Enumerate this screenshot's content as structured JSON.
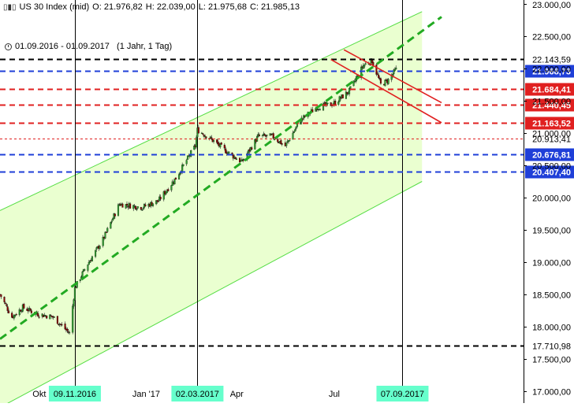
{
  "header": {
    "instrument": "US 30 Index (mid)",
    "open": "O: 21.976,82",
    "high": "H: 22.039,00",
    "low": "L: 21.975,68",
    "close": "C: 21.985,13",
    "icon": "candlestick-icon"
  },
  "period": {
    "text": "01.09.2016 - 01.09.2017   (1 Jahr, 1 Tag)",
    "icon": "clock-icon"
  },
  "colors": {
    "channel_fill": "#eaffd0",
    "channel_line": "#55dd44",
    "trend_dash": "#22aa22",
    "blue": "#1f3fd8",
    "red": "#e02020",
    "black": "#000000",
    "date_tag": "#66ffcc",
    "candle_up": "#2e9e2e",
    "candle_down": "#8b0000"
  },
  "chart_data": {
    "type": "candlestick",
    "title": "US 30 Index (mid)",
    "y_axis": {
      "min": 17000,
      "max": 23000,
      "ticks": [
        {
          "value": 23000,
          "label": "23.000,00"
        },
        {
          "value": 22500,
          "label": "22.500,00"
        },
        {
          "value": 22000,
          "label": "22.000,00"
        },
        {
          "value": 21500,
          "label": "21.500,00"
        },
        {
          "value": 21000,
          "label": "21.000,00"
        },
        {
          "value": 20500,
          "label": "20.500,00"
        },
        {
          "value": 20000,
          "label": "20.000,00"
        },
        {
          "value": 19500,
          "label": "19.500,00"
        },
        {
          "value": 19000,
          "label": "19.000,00"
        },
        {
          "value": 18500,
          "label": "18.500,00"
        },
        {
          "value": 18000,
          "label": "18.000,00"
        },
        {
          "value": 17500,
          "label": "17.500,00"
        },
        {
          "value": 17000,
          "label": "17.000,00"
        }
      ]
    },
    "x_axis": {
      "start": "2016-09-01",
      "end": "2017-10-13",
      "labels": [
        {
          "date": "2016-10-01",
          "label": "Okt",
          "highlight": false
        },
        {
          "date": "2016-11-09",
          "label": "09.11.2016",
          "highlight": true
        },
        {
          "date": "2017-01-01",
          "label": "Jan '17",
          "highlight": false
        },
        {
          "date": "2017-03-02",
          "label": "02.03.2017",
          "highlight": true
        },
        {
          "date": "2017-04-01",
          "label": "Apr",
          "highlight": false
        },
        {
          "date": "2017-07-01",
          "label": "Jul",
          "highlight": false
        },
        {
          "date": "2017-09-07",
          "label": "07.09.2017",
          "highlight": true
        }
      ]
    },
    "vertical_lines": [
      "2016-11-09",
      "2017-03-02",
      "2017-09-07"
    ],
    "horizontal_levels": [
      {
        "value": 22143.59,
        "label": "22.143,59",
        "color": "black",
        "style": "dash",
        "tag": false
      },
      {
        "value": 21968.73,
        "label": "21.968,73",
        "color": "blue",
        "style": "dash",
        "tag": true
      },
      {
        "value": 21684.41,
        "label": "21.684,41",
        "color": "red",
        "style": "dash",
        "tag": true
      },
      {
        "value": 21440.45,
        "label": "21.440,45",
        "color": "red",
        "style": "dash",
        "tag": true
      },
      {
        "value": 21163.52,
        "label": "21.163,52",
        "color": "red",
        "style": "dash",
        "tag": true
      },
      {
        "value": 20913.41,
        "label": "20.913,41",
        "color": "red",
        "style": "thin-dash",
        "tag": false
      },
      {
        "value": 20676.81,
        "label": "20.676,81",
        "color": "blue",
        "style": "dash",
        "tag": true
      },
      {
        "value": 20407.4,
        "label": "20.407,40",
        "color": "blue",
        "style": "dash",
        "tag": true
      },
      {
        "value": 17710.98,
        "label": "17.710,98",
        "color": "black",
        "style": "dash",
        "tag": false
      }
    ],
    "channel": {
      "upper": [
        {
          "date": "2016-09-01",
          "value": 19800
        },
        {
          "date": "2017-09-25",
          "value": 22880
        }
      ],
      "lower": [
        {
          "date": "2016-09-01",
          "value": 16750
        },
        {
          "date": "2017-09-25",
          "value": 20250
        }
      ]
    },
    "trend_lines": [
      {
        "from": {
          "date": "2016-09-01",
          "value": 17810
        },
        "to": {
          "date": "2017-10-13",
          "value": 22800
        },
        "color": "trend_dash",
        "style": "dash"
      },
      {
        "from": {
          "date": "2017-07-15",
          "value": 22290
        },
        "to": {
          "date": "2017-10-13",
          "value": 21470
        },
        "color": "red",
        "style": "solid"
      },
      {
        "from": {
          "date": "2017-07-03",
          "value": 22140
        },
        "to": {
          "date": "2017-10-13",
          "value": 21160
        },
        "color": "red",
        "style": "solid"
      }
    ],
    "anchors": [
      {
        "date": "2016-09-01",
        "value": 18500
      },
      {
        "date": "2016-09-12",
        "value": 18150
      },
      {
        "date": "2016-09-22",
        "value": 18300
      },
      {
        "date": "2016-10-05",
        "value": 18200
      },
      {
        "date": "2016-10-20",
        "value": 18150
      },
      {
        "date": "2016-11-04",
        "value": 17900
      },
      {
        "date": "2016-11-09",
        "value": 18600
      },
      {
        "date": "2016-11-20",
        "value": 18950
      },
      {
        "date": "2016-12-05",
        "value": 19350
      },
      {
        "date": "2016-12-20",
        "value": 19900
      },
      {
        "date": "2017-01-10",
        "value": 19850
      },
      {
        "date": "2017-01-25",
        "value": 19950
      },
      {
        "date": "2017-02-10",
        "value": 20300
      },
      {
        "date": "2017-02-28",
        "value": 20800
      },
      {
        "date": "2017-03-02",
        "value": 21050
      },
      {
        "date": "2017-03-15",
        "value": 20900
      },
      {
        "date": "2017-03-30",
        "value": 20700
      },
      {
        "date": "2017-04-12",
        "value": 20550
      },
      {
        "date": "2017-04-27",
        "value": 20950
      },
      {
        "date": "2017-05-10",
        "value": 20950
      },
      {
        "date": "2017-05-22",
        "value": 20800
      },
      {
        "date": "2017-06-05",
        "value": 21200
      },
      {
        "date": "2017-06-20",
        "value": 21400
      },
      {
        "date": "2017-07-05",
        "value": 21450
      },
      {
        "date": "2017-07-20",
        "value": 21650
      },
      {
        "date": "2017-08-02",
        "value": 22050
      },
      {
        "date": "2017-08-10",
        "value": 22120
      },
      {
        "date": "2017-08-18",
        "value": 21750
      },
      {
        "date": "2017-08-25",
        "value": 21820
      },
      {
        "date": "2017-09-01",
        "value": 21985
      }
    ]
  }
}
